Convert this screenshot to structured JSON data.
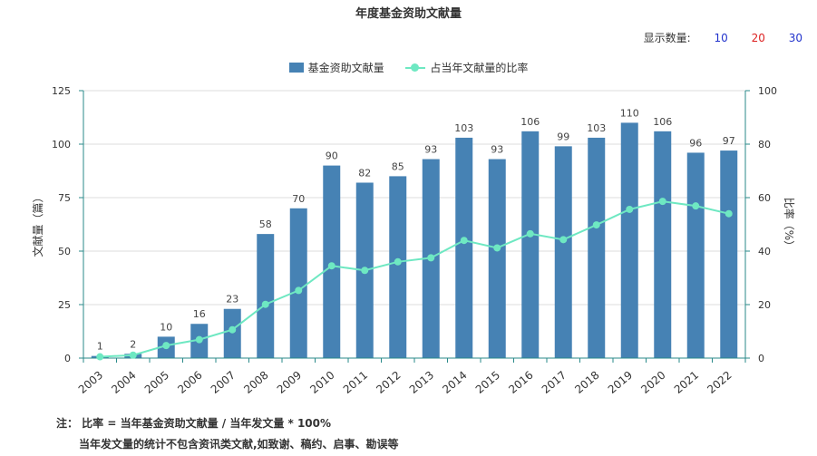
{
  "title": "年度基金资助文献量",
  "count_selector": {
    "label": "显示数量:",
    "options": [
      {
        "label": "10",
        "color": "#2233cc"
      },
      {
        "label": "20",
        "color": "#dd2222"
      },
      {
        "label": "30",
        "color": "#2233cc"
      }
    ]
  },
  "legend": {
    "bar_label": "基金资助文献量",
    "line_label": "占当年文献量的比率"
  },
  "colors": {
    "bar": "#4682b4",
    "line": "#6ee8c2",
    "axis": "#2a8a8a",
    "grid": "#dddddd"
  },
  "chart_data": {
    "type": "bar",
    "categories": [
      "2003",
      "2004",
      "2005",
      "2006",
      "2007",
      "2008",
      "2009",
      "2010",
      "2011",
      "2012",
      "2013",
      "2014",
      "2015",
      "2016",
      "2017",
      "2018",
      "2019",
      "2020",
      "2021",
      "2022"
    ],
    "series": [
      {
        "name": "基金资助文献量",
        "type": "bar",
        "axis": "left",
        "values": [
          1,
          2,
          10,
          16,
          23,
          58,
          70,
          90,
          82,
          85,
          93,
          103,
          93,
          106,
          99,
          103,
          110,
          106,
          96,
          97
        ]
      },
      {
        "name": "占当年文献量的比率",
        "type": "line",
        "axis": "right",
        "values": [
          0.5,
          1.1,
          4.7,
          6.9,
          10.6,
          20.1,
          25.3,
          34.5,
          32.8,
          36.0,
          37.5,
          44.0,
          41.2,
          46.5,
          44.3,
          49.8,
          55.6,
          58.6,
          56.9,
          54.0
        ]
      }
    ],
    "ylabel": "文献量（篇）",
    "y2label": "比率（%）",
    "ylim": [
      0,
      125
    ],
    "yticks": [
      0,
      25,
      50,
      75,
      100,
      125
    ],
    "y2lim": [
      0,
      100
    ],
    "y2ticks": [
      0,
      20,
      40,
      60,
      80,
      100
    ],
    "grid": true,
    "legend_position": "top-center"
  },
  "notes": {
    "line1": "注：  比率 = 当年基金资助文献量 / 当年发文量 * 100%",
    "line2": "当年发文量的统计不包含资讯类文献,如致谢、稿约、启事、勘误等"
  }
}
